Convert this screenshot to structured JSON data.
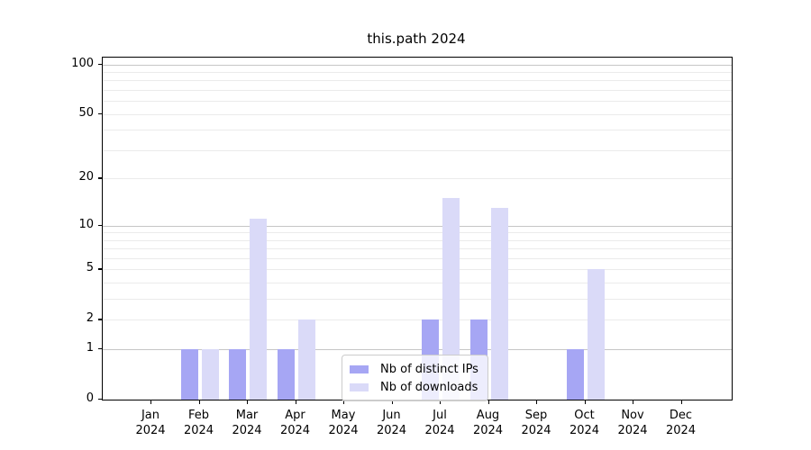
{
  "colors": {
    "ips_bar": "#a6a6f4",
    "downloads_bar": "#dadaf8",
    "grid_major": "#c6c6c6",
    "grid_minor": "#ebebeb",
    "spine": "#000000",
    "legend_border": "#cccccc",
    "text": "#000000"
  },
  "chart_data": {
    "type": "bar",
    "title": "this.path 2024",
    "categories": [
      "Jan",
      "Feb",
      "Mar",
      "Apr",
      "May",
      "Jun",
      "Jul",
      "Aug",
      "Sep",
      "Oct",
      "Nov",
      "Dec"
    ],
    "year_label": "2024",
    "series": [
      {
        "name": "Nb of distinct IPs",
        "color_key": "ips_bar",
        "values": [
          0,
          1,
          1,
          1,
          0,
          0,
          2,
          2,
          0,
          1,
          0,
          0
        ]
      },
      {
        "name": "Nb of downloads",
        "color_key": "downloads_bar",
        "values": [
          0,
          1,
          11,
          2,
          0,
          0,
          15,
          13,
          0,
          5,
          0,
          0
        ]
      }
    ],
    "xlabel": "",
    "ylabel": "",
    "y_ticks": [
      0,
      1,
      2,
      5,
      10,
      20,
      50,
      100
    ],
    "y_scale": "log1p",
    "ylim": [
      0,
      109
    ],
    "grid": {
      "major": [
        1,
        10,
        100
      ],
      "minor": [
        2,
        3,
        4,
        5,
        6,
        7,
        8,
        9,
        20,
        30,
        40,
        50,
        60,
        70,
        80,
        90
      ]
    },
    "legend_position": "lower center inside plot"
  }
}
